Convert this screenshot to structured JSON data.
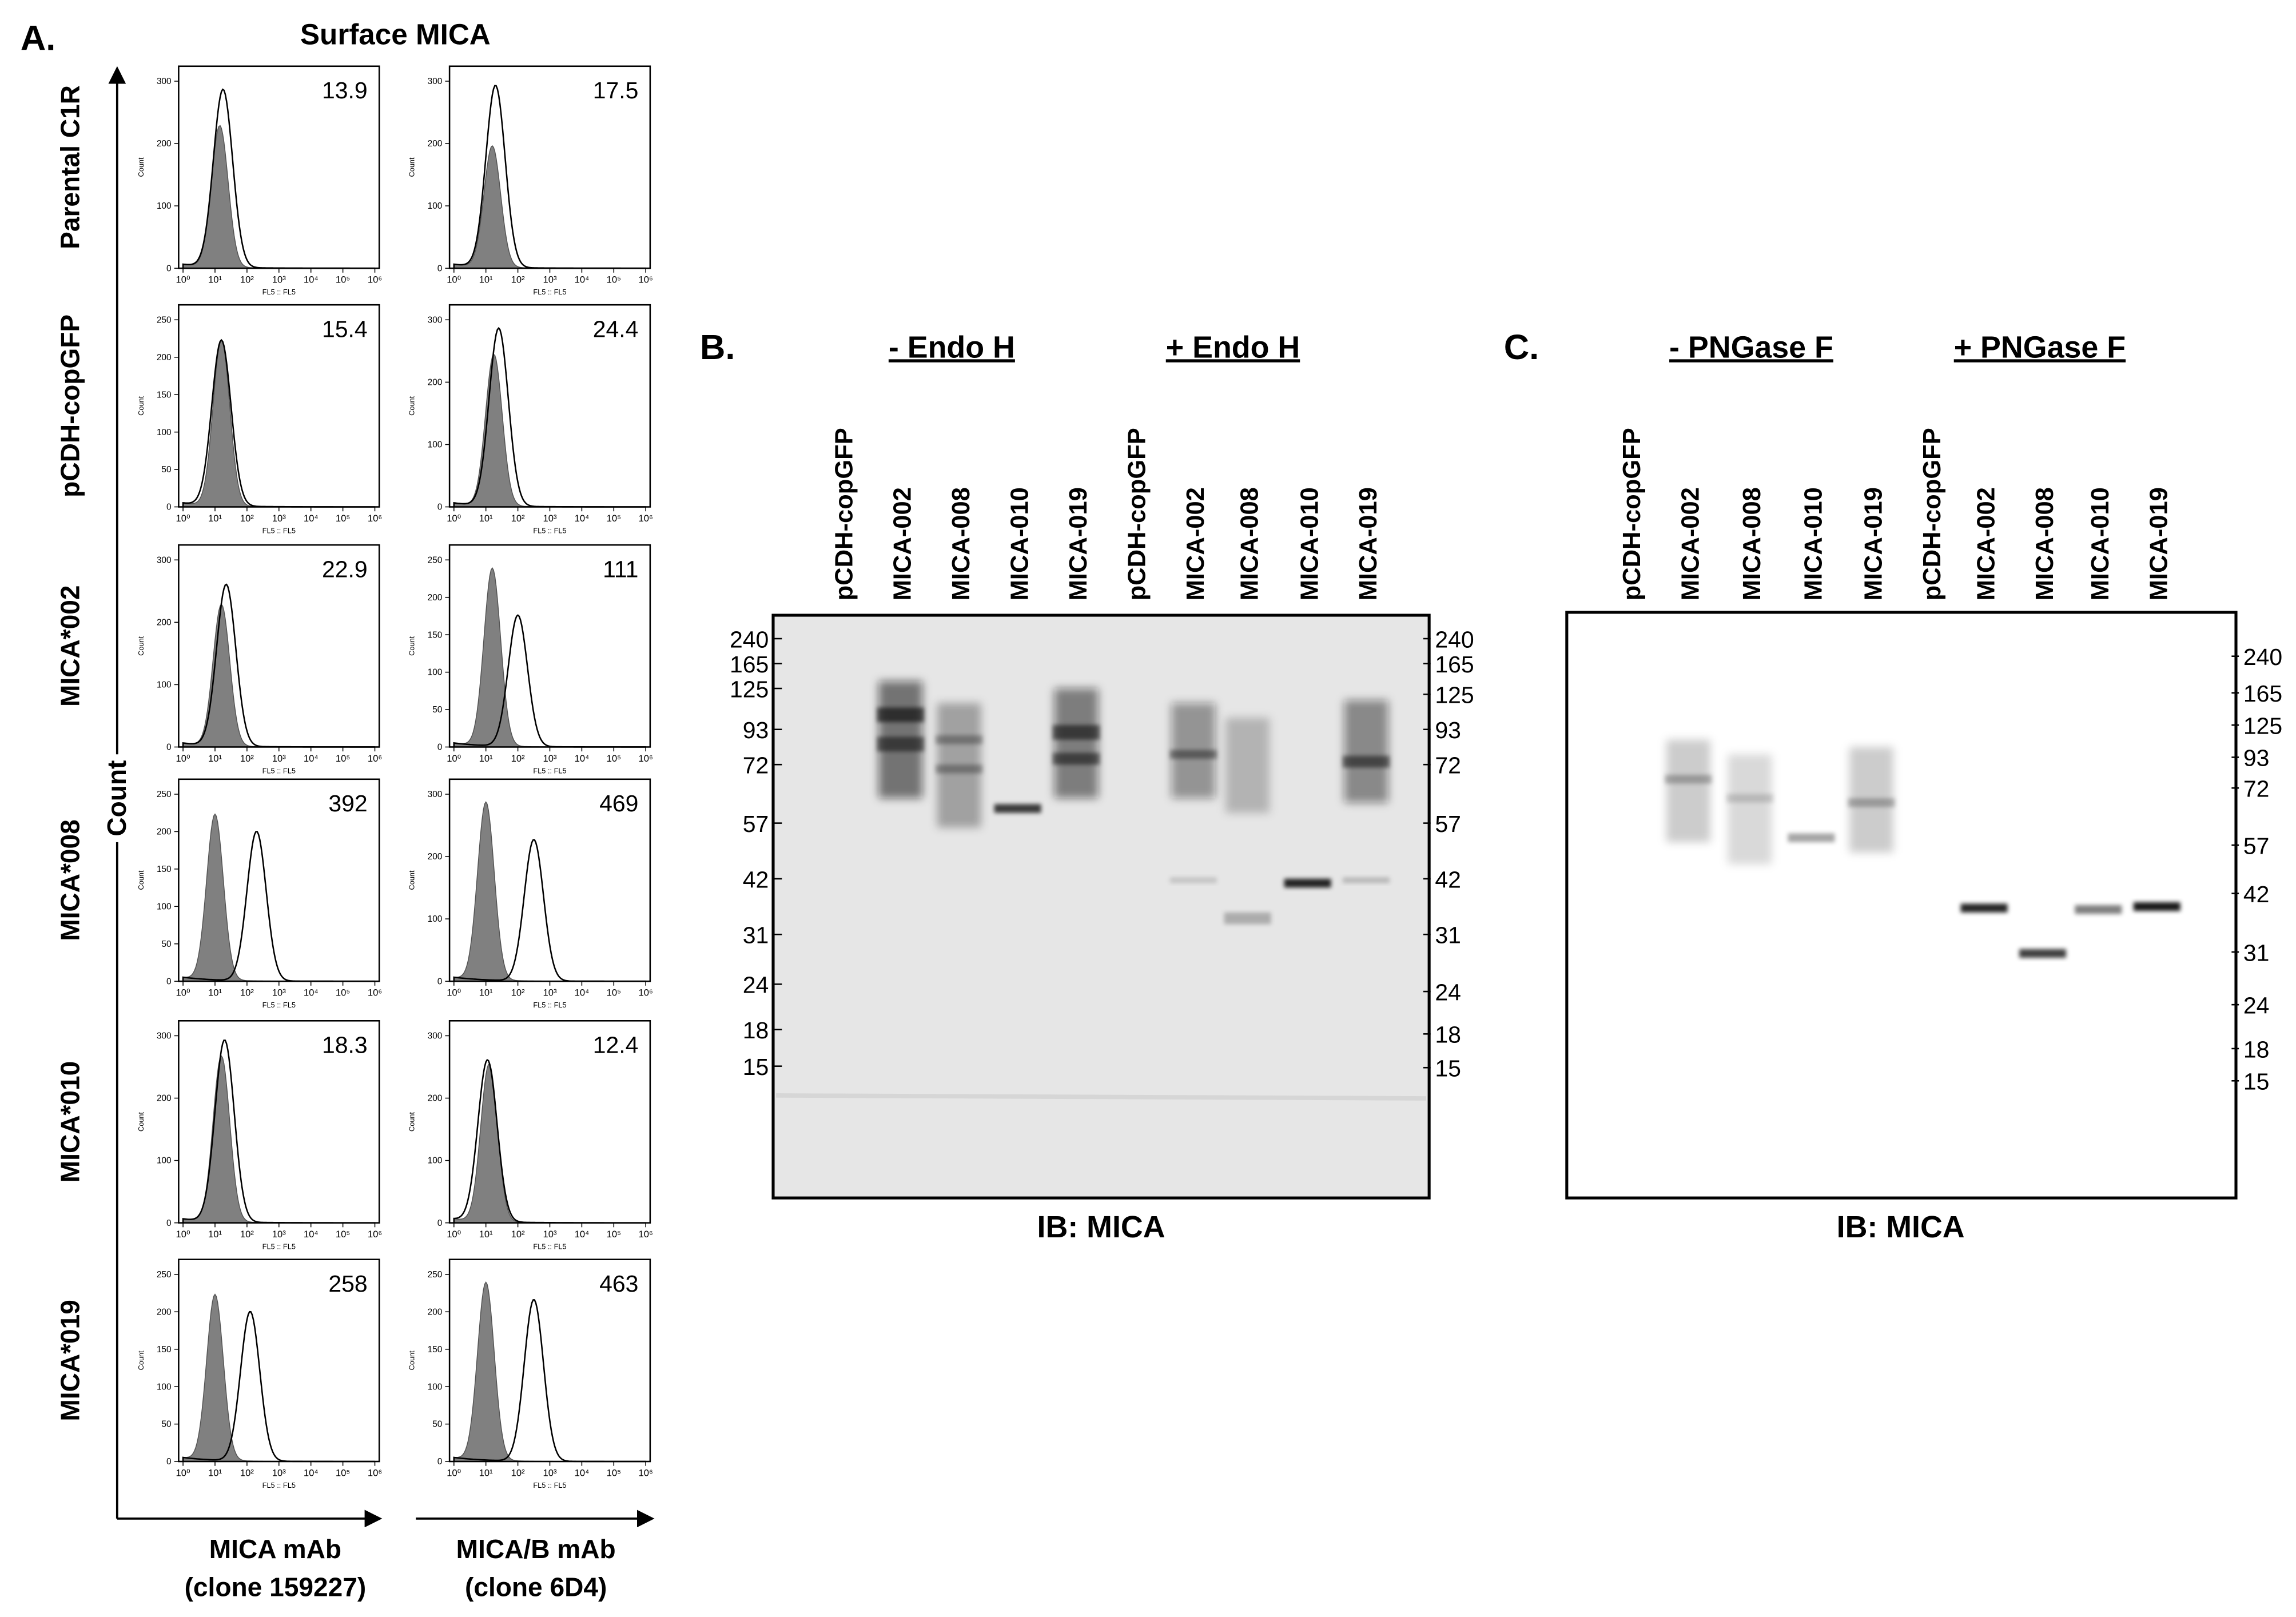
{
  "panel_a": {
    "label": "A.",
    "title": "Surface MICA",
    "y_axis_label": "Count",
    "columns": [
      {
        "label": "MICA mAb",
        "sublabel": "(clone 159227)"
      },
      {
        "label": "MICA/B mAb",
        "sublabel": "(clone 6D4)"
      }
    ],
    "histogram": {
      "y_label": "Count",
      "x_label": "FL5 :: FL5",
      "xticks": [
        {
          "value": 1,
          "label": "10⁰"
        },
        {
          "value": 10,
          "label": "10¹"
        },
        {
          "value": 100,
          "label": "10²"
        },
        {
          "value": 1000,
          "label": "10³"
        },
        {
          "value": 10000,
          "label": "10⁴"
        },
        {
          "value": 100000,
          "label": "10⁵"
        },
        {
          "value": 1000000,
          "label": "10⁶"
        }
      ]
    },
    "rows": [
      {
        "name": "Parental C1R",
        "values": [
          13.9,
          17.5
        ],
        "yticks": [
          [
            0,
            100,
            200,
            300
          ],
          [
            0,
            100,
            200,
            300
          ]
        ]
      },
      {
        "name": "pCDH-copGFP",
        "values": [
          15.4,
          24.4
        ],
        "yticks": [
          [
            0,
            50,
            100,
            150,
            200,
            250
          ],
          [
            0,
            100,
            200,
            300
          ]
        ]
      },
      {
        "name": "MICA*002",
        "values": [
          22.9,
          111
        ],
        "yticks": [
          [
            0,
            100,
            200,
            300
          ],
          [
            0,
            50,
            100,
            150,
            200,
            250
          ]
        ]
      },
      {
        "name": "MICA*008",
        "values": [
          392,
          469
        ],
        "yticks": [
          [
            0,
            50,
            100,
            150,
            200,
            250
          ],
          [
            0,
            100,
            200,
            300
          ]
        ]
      },
      {
        "name": "MICA*010",
        "values": [
          18.3,
          12.4
        ],
        "yticks": [
          [
            0,
            100,
            200,
            300
          ],
          [
            0,
            100,
            200,
            300
          ]
        ]
      },
      {
        "name": "MICA*019",
        "values": [
          258,
          463
        ],
        "yticks": [
          [
            0,
            50,
            100,
            150,
            200,
            250
          ],
          [
            0,
            50,
            100,
            150,
            200,
            250
          ]
        ]
      }
    ]
  },
  "panel_b": {
    "label": "B.",
    "groups": [
      "- Endo H",
      "+ Endo H"
    ],
    "lanes": [
      "pCDH-copGFP",
      "MICA-002",
      "MICA-008",
      "MICA-010",
      "MICA-019",
      "pCDH-copGFP",
      "MICA-002",
      "MICA-008",
      "MICA-010",
      "MICA-019"
    ],
    "markers_left": [
      240,
      165,
      125,
      93,
      72,
      57,
      42,
      31,
      24,
      18,
      15
    ],
    "markers_right": [
      240,
      165,
      125,
      93,
      72,
      57,
      42,
      31,
      24,
      18,
      15
    ],
    "caption": "IB: MICA"
  },
  "panel_c": {
    "label": "C.",
    "groups": [
      "- PNGase F",
      "+ PNGase F"
    ],
    "lanes": [
      "pCDH-copGFP",
      "MICA-002",
      "MICA-008",
      "MICA-010",
      "MICA-019",
      "pCDH-copGFP",
      "MICA-002",
      "MICA-008",
      "MICA-010",
      "MICA-019"
    ],
    "markers": [
      240,
      165,
      125,
      93,
      72,
      57,
      42,
      31,
      24,
      18,
      15
    ],
    "caption": "IB: MICA"
  }
}
